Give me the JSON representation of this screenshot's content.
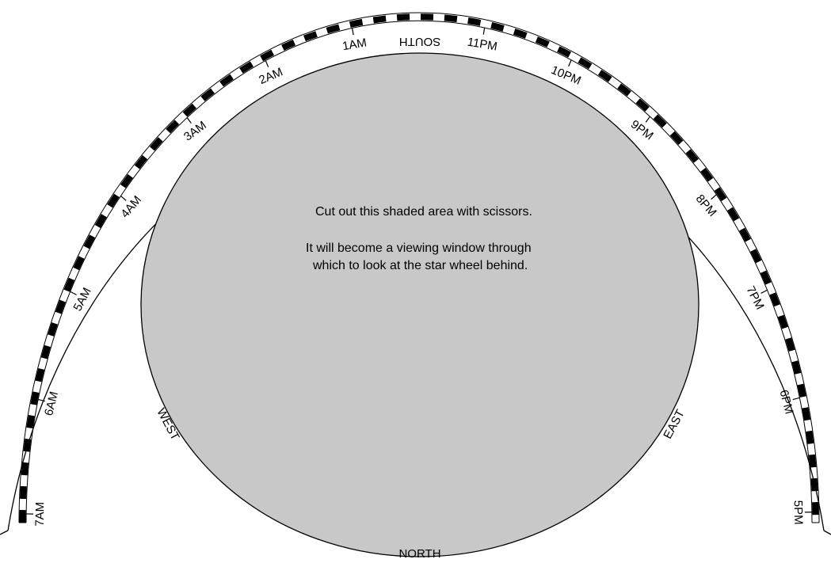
{
  "instructions": {
    "line1": "Cut out this shaded area with scissors.",
    "line2": "It will become a viewing window through",
    "line3": "which to look at the star wheel behind."
  },
  "directions": {
    "south": "SOUTH",
    "north": "NORTH",
    "east": "EAST",
    "west": "WEST"
  },
  "hours": {
    "morning": [
      "7AM",
      "6AM",
      "5AM",
      "4AM",
      "3AM",
      "2AM",
      "1AM"
    ],
    "evening": [
      "11PM",
      "10PM",
      "9PM",
      "8PM",
      "7PM",
      "6PM",
      "5PM"
    ]
  },
  "colors": {
    "window_fill": "#c8c8c8",
    "ink": "#000000",
    "paper": "#ffffff"
  }
}
